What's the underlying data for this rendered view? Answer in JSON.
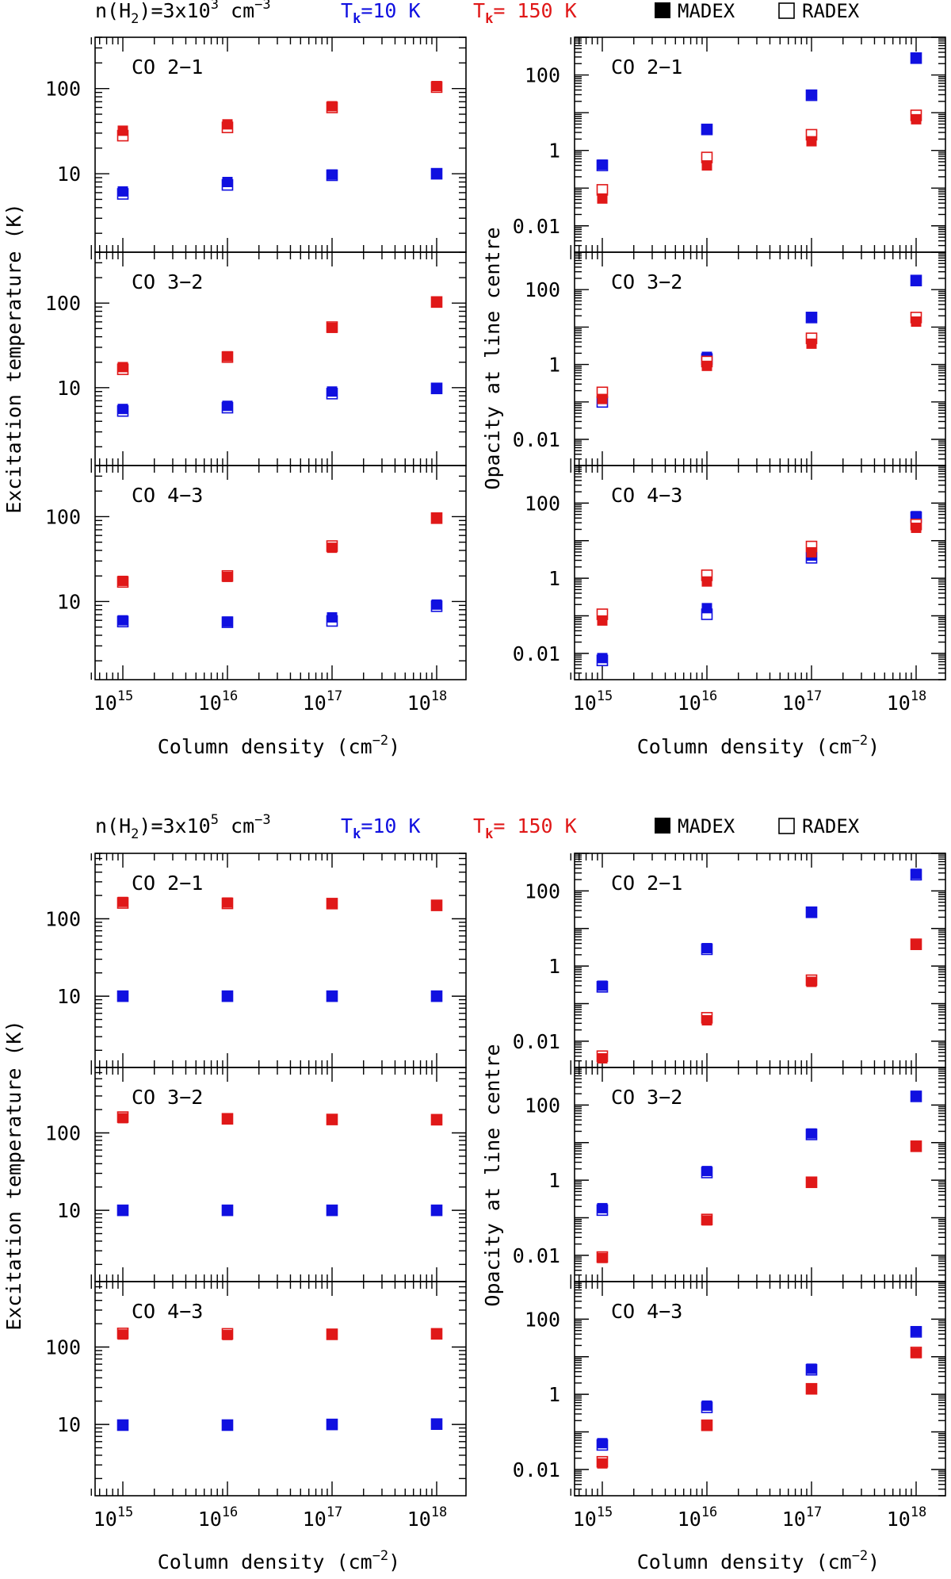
{
  "blocks": [
    {
      "density_label": {
        "prefix": "n(H",
        "sub": "2",
        "mid": ")=3x10",
        "exp": "3",
        "unit": " cm",
        "unit_exp": "−3"
      },
      "blue_label": {
        "t": "T",
        "sub": "k",
        "rest": "=10 K"
      },
      "red_label": {
        "t": "T",
        "sub": "k",
        "rest": "= 150 K"
      },
      "madex_label": "MADEX",
      "radex_label": "RADEX"
    },
    {
      "density_label": {
        "prefix": "n(H",
        "sub": "2",
        "mid": ")=3x10",
        "exp": "5",
        "unit": " cm",
        "unit_exp": "−3"
      },
      "blue_label": {
        "t": "T",
        "sub": "k",
        "rest": "=10 K"
      },
      "red_label": {
        "t": "T",
        "sub": "k",
        "rest": "= 150 K"
      },
      "madex_label": "MADEX",
      "radex_label": "RADEX"
    }
  ],
  "axis_labels": {
    "left_ylabel": "Excitation temperature (K)",
    "right_ylabel": "Opacity at line centre",
    "xlabel": {
      "text": "Column density (cm",
      "exp": "−2",
      "close": ")"
    },
    "x_ticks": [
      {
        "base": "10",
        "exp": "15"
      },
      {
        "base": "10",
        "exp": "16"
      },
      {
        "base": "10",
        "exp": "17"
      },
      {
        "base": "10",
        "exp": "18"
      }
    ]
  },
  "colors": {
    "blue": "#1010e0",
    "red": "#e01818",
    "axis": "#000000"
  },
  "chart_data": [
    {
      "type": "scatter",
      "block": 0,
      "column": "Tex",
      "title": "CO 2−1",
      "yscale": "log",
      "ylim": [
        1.2,
        400
      ],
      "yticks": [
        10,
        100
      ],
      "ytick_labels": [
        "10",
        "100"
      ],
      "x": [
        1000000000000000.0,
        1e+16,
        1e+17,
        1e+18
      ],
      "series": [
        {
          "color": "blue",
          "madex": [
            6.2,
            8.0,
            9.8,
            10.1
          ],
          "radex": [
            5.8,
            7.4,
            9.6,
            10.0
          ]
        },
        {
          "color": "red",
          "madex": [
            32,
            38,
            62,
            107
          ],
          "radex": [
            28,
            35,
            60,
            104
          ]
        }
      ]
    },
    {
      "type": "scatter",
      "block": 0,
      "column": "Tex",
      "title": "CO 3−2",
      "yscale": "log",
      "ylim": [
        1.2,
        400
      ],
      "yticks": [
        10,
        100
      ],
      "ytick_labels": [
        "10",
        "100"
      ],
      "x": [
        1000000000000000.0,
        1e+16,
        1e+17,
        1e+18
      ],
      "series": [
        {
          "color": "blue",
          "madex": [
            5.6,
            6.1,
            9.0,
            9.9
          ],
          "radex": [
            5.3,
            5.8,
            8.5,
            9.8
          ]
        },
        {
          "color": "red",
          "madex": [
            17.5,
            23.5,
            51,
            104
          ],
          "radex": [
            16.5,
            23,
            52,
            103
          ]
        }
      ]
    },
    {
      "type": "scatter",
      "block": 0,
      "column": "Tex",
      "title": "CO 4−3",
      "yscale": "log",
      "ylim": [
        1.2,
        400
      ],
      "yticks": [
        10,
        100
      ],
      "ytick_labels": [
        "10",
        "100"
      ],
      "x": [
        1000000000000000.0,
        1e+16,
        1e+17,
        1e+18
      ],
      "series": [
        {
          "color": "blue",
          "madex": [
            6.0,
            5.8,
            6.5,
            9.2
          ],
          "radex": [
            5.8,
            5.7,
            5.9,
            8.8
          ]
        },
        {
          "color": "red",
          "madex": [
            17.5,
            19.5,
            43,
            97
          ],
          "radex": [
            17,
            20,
            45,
            96
          ]
        }
      ]
    },
    {
      "type": "scatter",
      "block": 0,
      "column": "tau",
      "title": "CO 2−1",
      "yscale": "log",
      "ylim": [
        0.002,
        1000
      ],
      "yticks": [
        0.01,
        1,
        100
      ],
      "ytick_labels": [
        "0.01",
        "1",
        "100"
      ],
      "x": [
        1000000000000000.0,
        1e+16,
        1e+17,
        1e+18
      ],
      "series": [
        {
          "color": "blue",
          "madex": [
            0.42,
            3.7,
            30,
            290
          ],
          "radex": [
            0.4,
            3.6,
            29,
            280
          ]
        },
        {
          "color": "red",
          "madex": [
            0.053,
            0.4,
            1.75,
            6.7
          ],
          "radex": [
            0.09,
            0.65,
            2.6,
            8.5
          ]
        }
      ]
    },
    {
      "type": "scatter",
      "block": 0,
      "column": "tau",
      "title": "CO 3−2",
      "yscale": "log",
      "ylim": [
        0.002,
        1000
      ],
      "yticks": [
        0.01,
        1,
        100
      ],
      "ytick_labels": [
        "0.01",
        "1",
        "100"
      ],
      "x": [
        1000000000000000.0,
        1e+16,
        1e+17,
        1e+18
      ],
      "series": [
        {
          "color": "blue",
          "madex": [
            0.12,
            1.6,
            18.5,
            180
          ],
          "radex": [
            0.1,
            1.4,
            18,
            175
          ]
        },
        {
          "color": "red",
          "madex": [
            0.12,
            0.92,
            3.6,
            14
          ],
          "radex": [
            0.18,
            1.2,
            5.0,
            18
          ]
        }
      ]
    },
    {
      "type": "scatter",
      "block": 0,
      "column": "tau",
      "title": "CO 4−3",
      "yscale": "log",
      "ylim": [
        0.002,
        1000
      ],
      "yticks": [
        0.01,
        1,
        100
      ],
      "ytick_labels": [
        "0.01",
        "1",
        "100"
      ],
      "x": [
        1000000000000000.0,
        1e+16,
        1e+17,
        1e+18
      ],
      "series": [
        {
          "color": "blue",
          "madex": [
            0.0075,
            0.16,
            4.0,
            45
          ],
          "radex": [
            0.0065,
            0.11,
            3.5,
            42
          ]
        },
        {
          "color": "red",
          "madex": [
            0.075,
            0.82,
            4.9,
            22
          ],
          "radex": [
            0.11,
            1.2,
            7.0,
            27
          ]
        }
      ]
    },
    {
      "type": "scatter",
      "block": 1,
      "column": "Tex",
      "title": "CO 2−1",
      "yscale": "log",
      "ylim": [
        1.2,
        700
      ],
      "yticks": [
        10,
        100
      ],
      "ytick_labels": [
        "10",
        "100"
      ],
      "x": [
        1000000000000000.0,
        1e+16,
        1e+17,
        1e+18
      ],
      "series": [
        {
          "color": "blue",
          "madex": [
            10,
            10,
            10,
            10
          ],
          "radex": [
            10,
            10,
            10,
            10
          ]
        },
        {
          "color": "red",
          "madex": [
            165,
            162,
            158,
            150
          ],
          "radex": [
            160,
            158,
            157,
            149
          ]
        }
      ]
    },
    {
      "type": "scatter",
      "block": 1,
      "column": "Tex",
      "title": "CO 3−2",
      "yscale": "log",
      "ylim": [
        1.2,
        700
      ],
      "yticks": [
        10,
        100
      ],
      "ytick_labels": [
        "10",
        "100"
      ],
      "x": [
        1000000000000000.0,
        1e+16,
        1e+17,
        1e+18
      ],
      "series": [
        {
          "color": "blue",
          "madex": [
            10,
            10,
            10,
            10
          ],
          "radex": [
            10,
            10,
            10,
            10
          ]
        },
        {
          "color": "red",
          "madex": [
            155,
            150,
            148,
            148
          ],
          "radex": [
            160,
            152,
            149,
            148
          ]
        }
      ]
    },
    {
      "type": "scatter",
      "block": 1,
      "column": "Tex",
      "title": "CO 4−3",
      "yscale": "log",
      "ylim": [
        1.2,
        700
      ],
      "yticks": [
        10,
        100
      ],
      "ytick_labels": [
        "10",
        "100"
      ],
      "x": [
        1000000000000000.0,
        1e+16,
        1e+17,
        1e+18
      ],
      "series": [
        {
          "color": "blue",
          "madex": [
            9.8,
            9.8,
            10,
            10.2
          ],
          "radex": [
            9.8,
            9.8,
            10,
            10.1
          ]
        },
        {
          "color": "red",
          "madex": [
            145,
            143,
            145,
            148
          ],
          "radex": [
            150,
            148,
            146,
            148
          ]
        }
      ]
    },
    {
      "type": "scatter",
      "block": 1,
      "column": "tau",
      "title": "CO 2−1",
      "yscale": "log",
      "ylim": [
        0.002,
        1000
      ],
      "yticks": [
        0.01,
        1,
        100
      ],
      "ytick_labels": [
        "0.01",
        "1",
        "100"
      ],
      "x": [
        1000000000000000.0,
        1e+16,
        1e+17,
        1e+18
      ],
      "series": [
        {
          "color": "blue",
          "madex": [
            0.3,
            3.0,
            28,
            285
          ],
          "radex": [
            0.28,
            2.8,
            27,
            270
          ]
        },
        {
          "color": "red",
          "madex": [
            0.0035,
            0.036,
            0.38,
            3.7
          ],
          "radex": [
            0.004,
            0.042,
            0.42,
            3.8
          ]
        }
      ]
    },
    {
      "type": "scatter",
      "block": 1,
      "column": "tau",
      "title": "CO 3−2",
      "yscale": "log",
      "ylim": [
        0.002,
        1000
      ],
      "yticks": [
        0.01,
        1,
        100
      ],
      "ytick_labels": [
        "0.01",
        "1",
        "100"
      ],
      "x": [
        1000000000000000.0,
        1e+16,
        1e+17,
        1e+18
      ],
      "series": [
        {
          "color": "blue",
          "madex": [
            0.18,
            1.75,
            17.5,
            175
          ],
          "radex": [
            0.16,
            1.6,
            16.5,
            170
          ]
        },
        {
          "color": "red",
          "madex": [
            0.0085,
            0.085,
            0.85,
            7.8
          ],
          "radex": [
            0.009,
            0.09,
            0.88,
            8.0
          ]
        }
      ]
    },
    {
      "type": "scatter",
      "block": 1,
      "column": "tau",
      "title": "CO 4−3",
      "yscale": "log",
      "ylim": [
        0.002,
        1000
      ],
      "yticks": [
        0.01,
        1,
        100
      ],
      "ytick_labels": [
        "0.01",
        "1",
        "100"
      ],
      "x": [
        1000000000000000.0,
        1e+16,
        1e+17,
        1e+18
      ],
      "series": [
        {
          "color": "blue",
          "madex": [
            0.05,
            0.5,
            4.8,
            48
          ],
          "radex": [
            0.045,
            0.45,
            4.5,
            46
          ]
        },
        {
          "color": "red",
          "madex": [
            0.0145,
            0.145,
            1.38,
            12.5
          ],
          "radex": [
            0.016,
            0.15,
            1.4,
            13
          ]
        }
      ]
    }
  ]
}
